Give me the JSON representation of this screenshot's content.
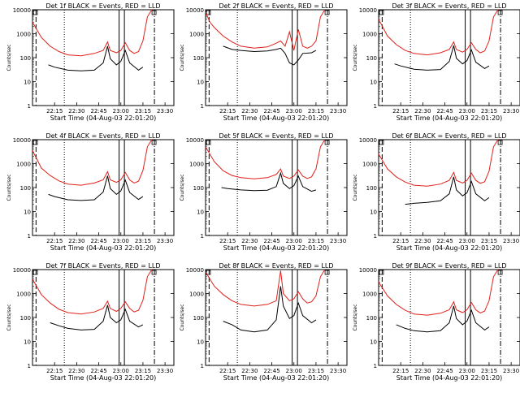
{
  "chart_data": {
    "type": "line",
    "grid": "3x3",
    "xlabel": "Start Time (04-Aug-03 22:01:20)",
    "ylabel": "Counts/sec",
    "xlim": [
      22.0,
      23.6
    ],
    "ylim": [
      1,
      10000
    ],
    "xticks": [
      "22:15",
      "22:30",
      "22:45",
      "23:00",
      "23:15",
      "23:30"
    ],
    "xtick_values": [
      22.25,
      22.5,
      22.75,
      23.0,
      23.25,
      23.5
    ],
    "yticks": [
      "1",
      "10",
      "100",
      "1000",
      "10000"
    ],
    "ytick_values": [
      1,
      10,
      100,
      1000,
      10000
    ],
    "series_names": [
      "BLACK = Events",
      "RED = LLD"
    ],
    "series_colors": {
      "events": "#000000",
      "lld": "#e0201a"
    },
    "markers": {
      "dotted_line_x": 22.36,
      "double_line_x": [
        22.98,
        23.04
      ],
      "dash_dot_line_x": 23.38
    },
    "panels": [
      {
        "title": "Det 1f BLACK = Events, RED = LLD",
        "lld": {
          "x": [
            22.0,
            22.1,
            22.2,
            22.3,
            22.4,
            22.55,
            22.7,
            22.8,
            22.85,
            22.88,
            22.95,
            23.0,
            23.05,
            23.1,
            23.15,
            23.2,
            23.25,
            23.3,
            23.35
          ],
          "y": [
            3000,
            700,
            300,
            180,
            130,
            120,
            150,
            200,
            450,
            200,
            160,
            200,
            420,
            200,
            150,
            180,
            500,
            5000,
            10000
          ]
        },
        "events": {
          "x": [
            22.18,
            22.25,
            22.4,
            22.55,
            22.7,
            22.8,
            22.85,
            22.88,
            22.95,
            23.0,
            23.05,
            23.1,
            23.2,
            23.25
          ],
          "y": [
            50,
            40,
            30,
            28,
            30,
            60,
            300,
            90,
            50,
            70,
            200,
            60,
            30,
            40
          ]
        }
      },
      {
        "title": "Det 2f BLACK = Events, RED = LLD",
        "lld": {
          "x": [
            22.0,
            22.05,
            22.1,
            22.2,
            22.3,
            22.4,
            22.55,
            22.7,
            22.8,
            22.85,
            22.9,
            22.95,
            23.0,
            23.05,
            23.1,
            23.15,
            23.2,
            23.25,
            23.3,
            23.35
          ],
          "y": [
            8000,
            3000,
            1800,
            800,
            450,
            300,
            250,
            280,
            400,
            500,
            300,
            1200,
            200,
            1500,
            300,
            250,
            300,
            500,
            5000,
            10000
          ]
        },
        "events": {
          "x": [
            22.2,
            22.3,
            22.4,
            22.55,
            22.7,
            22.8,
            22.85,
            22.9,
            22.95,
            23.0,
            23.05,
            23.1,
            23.2,
            23.25
          ],
          "y": [
            300,
            220,
            200,
            180,
            190,
            220,
            250,
            150,
            60,
            50,
            80,
            150,
            160,
            200
          ]
        }
      },
      {
        "title": "Det 3f BLACK = Events, RED = LLD",
        "lld": {
          "x": [
            22.0,
            22.1,
            22.2,
            22.3,
            22.4,
            22.55,
            22.7,
            22.8,
            22.85,
            22.88,
            22.95,
            23.0,
            23.05,
            23.1,
            23.15,
            23.2,
            23.25,
            23.3,
            23.35
          ],
          "y": [
            4000,
            800,
            350,
            200,
            150,
            130,
            160,
            220,
            450,
            220,
            170,
            220,
            420,
            220,
            160,
            190,
            500,
            5000,
            10000
          ]
        },
        "events": {
          "x": [
            22.18,
            22.25,
            22.4,
            22.55,
            22.7,
            22.8,
            22.85,
            22.88,
            22.95,
            23.0,
            23.05,
            23.1,
            23.2,
            23.25
          ],
          "y": [
            55,
            45,
            33,
            30,
            32,
            70,
            320,
            95,
            55,
            75,
            210,
            65,
            35,
            45
          ]
        }
      },
      {
        "title": "Det 4f BLACK = Events, RED = LLD",
        "lld": {
          "x": [
            22.0,
            22.1,
            22.2,
            22.3,
            22.4,
            22.55,
            22.7,
            22.8,
            22.85,
            22.88,
            22.95,
            23.0,
            23.05,
            23.1,
            23.15,
            23.2,
            23.25,
            23.3,
            23.35
          ],
          "y": [
            3500,
            650,
            320,
            190,
            140,
            125,
            155,
            210,
            460,
            210,
            165,
            210,
            430,
            210,
            155,
            185,
            510,
            5000,
            10000
          ]
        },
        "events": {
          "x": [
            22.18,
            22.25,
            22.4,
            22.55,
            22.7,
            22.8,
            22.85,
            22.88,
            22.95,
            23.0,
            23.05,
            23.1,
            23.2,
            23.25
          ],
          "y": [
            52,
            42,
            31,
            29,
            31,
            65,
            310,
            92,
            52,
            72,
            205,
            62,
            32,
            42
          ]
        }
      },
      {
        "title": "Det 5f BLACK = Events, RED = LLD",
        "lld": {
          "x": [
            22.0,
            22.1,
            22.2,
            22.3,
            22.4,
            22.55,
            22.7,
            22.8,
            22.85,
            22.88,
            22.95,
            23.0,
            23.05,
            23.1,
            23.15,
            23.2,
            23.25,
            23.3,
            23.35
          ],
          "y": [
            5000,
            1200,
            500,
            320,
            260,
            230,
            260,
            350,
            600,
            300,
            240,
            300,
            550,
            300,
            240,
            280,
            600,
            5000,
            10000
          ]
        },
        "events": {
          "x": [
            22.18,
            22.25,
            22.4,
            22.55,
            22.7,
            22.8,
            22.85,
            22.88,
            22.95,
            23.0,
            23.05,
            23.1,
            23.2,
            23.25
          ],
          "y": [
            100,
            90,
            80,
            75,
            78,
            110,
            400,
            150,
            90,
            120,
            300,
            110,
            70,
            80
          ]
        }
      },
      {
        "title": "Det 6f BLACK = Events, RED = LLD",
        "lld": {
          "x": [
            22.0,
            22.1,
            22.2,
            22.3,
            22.4,
            22.55,
            22.7,
            22.8,
            22.85,
            22.88,
            22.95,
            23.0,
            23.05,
            23.1,
            23.15,
            23.2,
            23.25,
            23.3,
            23.35
          ],
          "y": [
            2500,
            600,
            280,
            170,
            125,
            115,
            140,
            200,
            430,
            200,
            155,
            200,
            400,
            200,
            150,
            175,
            480,
            5000,
            10000
          ]
        },
        "events": {
          "x": [
            22.3,
            22.4,
            22.55,
            22.7,
            22.8,
            22.85,
            22.88,
            22.95,
            23.0,
            23.05,
            23.1,
            23.2,
            23.25
          ],
          "y": [
            20,
            22,
            24,
            28,
            55,
            280,
            80,
            45,
            60,
            180,
            55,
            28,
            38
          ]
        }
      },
      {
        "title": "Det 7f BLACK = Events, RED = LLD",
        "lld": {
          "x": [
            22.0,
            22.1,
            22.2,
            22.3,
            22.4,
            22.55,
            22.7,
            22.8,
            22.85,
            22.88,
            22.95,
            23.0,
            23.05,
            23.1,
            23.15,
            23.2,
            23.25,
            23.3,
            23.35
          ],
          "y": [
            4000,
            900,
            400,
            220,
            160,
            140,
            170,
            240,
            480,
            240,
            180,
            240,
            450,
            240,
            170,
            200,
            520,
            5000,
            10000
          ]
        },
        "events": {
          "x": [
            22.2,
            22.3,
            22.4,
            22.55,
            22.7,
            22.8,
            22.85,
            22.88,
            22.95,
            23.0,
            23.05,
            23.1,
            23.2,
            23.25
          ],
          "y": [
            60,
            45,
            35,
            30,
            32,
            70,
            330,
            100,
            60,
            80,
            220,
            70,
            40,
            50
          ]
        }
      },
      {
        "title": "Det 8f BLACK = Events, RED = LLD",
        "lld": {
          "x": [
            22.0,
            22.1,
            22.2,
            22.3,
            22.4,
            22.55,
            22.7,
            22.8,
            22.85,
            22.88,
            22.95,
            23.0,
            23.05,
            23.1,
            23.15,
            23.2,
            23.25,
            23.3,
            23.35
          ],
          "y": [
            8000,
            2000,
            900,
            500,
            350,
            300,
            350,
            500,
            9000,
            1000,
            500,
            600,
            1200,
            600,
            400,
            450,
            800,
            5000,
            10000
          ]
        },
        "events": {
          "x": [
            22.2,
            22.3,
            22.4,
            22.55,
            22.7,
            22.8,
            22.85,
            22.88,
            22.95,
            23.0,
            23.05,
            23.1,
            23.2,
            23.25
          ],
          "y": [
            70,
            50,
            30,
            25,
            30,
            80,
            2000,
            300,
            90,
            120,
            400,
            120,
            60,
            80
          ]
        }
      },
      {
        "title": "Det 9f BLACK = Events, RED = LLD",
        "lld": {
          "x": [
            22.0,
            22.1,
            22.2,
            22.3,
            22.4,
            22.55,
            22.7,
            22.8,
            22.85,
            22.88,
            22.95,
            23.0,
            23.05,
            23.1,
            23.15,
            23.2,
            23.25,
            23.3,
            23.35
          ],
          "y": [
            3000,
            800,
            350,
            200,
            140,
            125,
            150,
            210,
            450,
            210,
            160,
            210,
            420,
            210,
            155,
            185,
            500,
            5000,
            10000
          ]
        },
        "events": {
          "x": [
            22.2,
            22.3,
            22.4,
            22.55,
            22.7,
            22.8,
            22.85,
            22.88,
            22.95,
            23.0,
            23.05,
            23.1,
            23.2,
            23.25
          ],
          "y": [
            50,
            35,
            28,
            25,
            28,
            60,
            300,
            90,
            50,
            70,
            200,
            60,
            30,
            40
          ]
        }
      }
    ]
  }
}
